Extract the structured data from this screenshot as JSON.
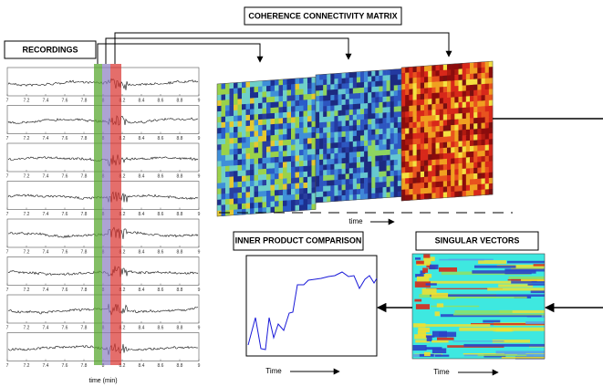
{
  "recordings": {
    "label": "RECORDINGS",
    "xticks": [
      "7",
      "7.2",
      "7.4",
      "7.6",
      "7.8",
      "8",
      "8.2",
      "8.4",
      "8.6",
      "8.8",
      "9"
    ],
    "xlabel": "time (min)"
  },
  "coherence": {
    "label": "COHERENCE CONNECTIVITY MATRIX",
    "time_label": "time"
  },
  "inner_product": {
    "label": "INNER PRODUCT COMPARISON",
    "xlabel": "Time"
  },
  "singular_vectors": {
    "label": "SINGULAR VECTORS",
    "xlabel": "Time"
  }
}
